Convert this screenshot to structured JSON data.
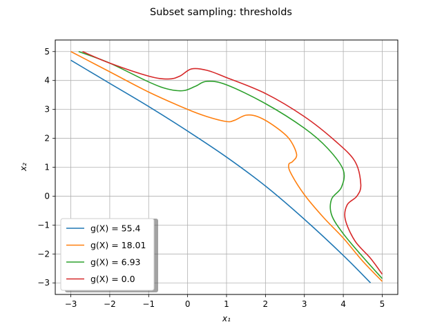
{
  "chart_data": {
    "type": "line",
    "title": "Subset sampling: thresholds",
    "xlabel": "x₁",
    "ylabel": "x₂",
    "xlim": [
      -3.4,
      5.4
    ],
    "ylim": [
      -3.4,
      5.4
    ],
    "xticks": [
      -3,
      -2,
      -1,
      0,
      1,
      2,
      3,
      4,
      5
    ],
    "yticks": [
      -3,
      -2,
      -1,
      0,
      1,
      2,
      3,
      4,
      5
    ],
    "xtick_labels": [
      "−3",
      "−2",
      "−1",
      "0",
      "1",
      "2",
      "3",
      "4",
      "5"
    ],
    "ytick_labels": [
      "−3",
      "−2",
      "−1",
      "0",
      "1",
      "2",
      "3",
      "4",
      "5"
    ],
    "grid": true,
    "legend_position": "lower-left",
    "series": [
      {
        "name": "g(X) = 55.4",
        "color": "#1f77b4",
        "points": [
          [
            -3.0,
            4.7
          ],
          [
            -2.0,
            3.9
          ],
          [
            -1.0,
            3.1
          ],
          [
            0.0,
            2.25
          ],
          [
            1.0,
            1.35
          ],
          [
            2.0,
            0.35
          ],
          [
            3.0,
            -0.8
          ],
          [
            4.0,
            -2.05
          ],
          [
            4.7,
            -3.0
          ]
        ]
      },
      {
        "name": "g(X) = 18.01",
        "color": "#ff7f0e",
        "points": [
          [
            -3.0,
            5.0
          ],
          [
            -2.0,
            4.3
          ],
          [
            -1.0,
            3.6
          ],
          [
            0.0,
            3.0
          ],
          [
            0.5,
            2.75
          ],
          [
            1.0,
            2.58
          ],
          [
            1.2,
            2.62
          ],
          [
            1.5,
            2.8
          ],
          [
            1.8,
            2.75
          ],
          [
            2.2,
            2.45
          ],
          [
            2.6,
            2.0
          ],
          [
            2.8,
            1.45
          ],
          [
            2.7,
            1.2
          ],
          [
            2.6,
            1.1
          ],
          [
            2.65,
            0.8
          ],
          [
            3.0,
            0.05
          ],
          [
            3.5,
            -0.75
          ],
          [
            4.0,
            -1.45
          ],
          [
            4.5,
            -2.25
          ],
          [
            5.0,
            -2.95
          ]
        ]
      },
      {
        "name": "g(X) = 6.93",
        "color": "#2ca02c",
        "points": [
          [
            -2.8,
            5.0
          ],
          [
            -2.0,
            4.6
          ],
          [
            -1.0,
            3.95
          ],
          [
            -0.5,
            3.7
          ],
          [
            -0.1,
            3.65
          ],
          [
            0.2,
            3.8
          ],
          [
            0.5,
            3.97
          ],
          [
            1.0,
            3.85
          ],
          [
            2.0,
            3.2
          ],
          [
            3.0,
            2.35
          ],
          [
            3.6,
            1.65
          ],
          [
            4.0,
            0.9
          ],
          [
            3.95,
            0.3
          ],
          [
            3.7,
            -0.1
          ],
          [
            3.7,
            -0.65
          ],
          [
            4.0,
            -1.3
          ],
          [
            4.5,
            -2.1
          ],
          [
            5.0,
            -2.85
          ]
        ]
      },
      {
        "name": "g(X) = 0.0",
        "color": "#d62728",
        "points": [
          [
            -2.7,
            5.0
          ],
          [
            -2.0,
            4.6
          ],
          [
            -1.0,
            4.15
          ],
          [
            -0.5,
            4.05
          ],
          [
            -0.2,
            4.15
          ],
          [
            0.1,
            4.4
          ],
          [
            0.5,
            4.35
          ],
          [
            1.0,
            4.1
          ],
          [
            2.0,
            3.55
          ],
          [
            3.0,
            2.75
          ],
          [
            3.8,
            1.9
          ],
          [
            4.3,
            1.2
          ],
          [
            4.45,
            0.4
          ],
          [
            4.35,
            0.0
          ],
          [
            4.1,
            -0.3
          ],
          [
            4.05,
            -0.8
          ],
          [
            4.3,
            -1.55
          ],
          [
            4.7,
            -2.15
          ],
          [
            5.0,
            -2.7
          ]
        ]
      }
    ]
  }
}
